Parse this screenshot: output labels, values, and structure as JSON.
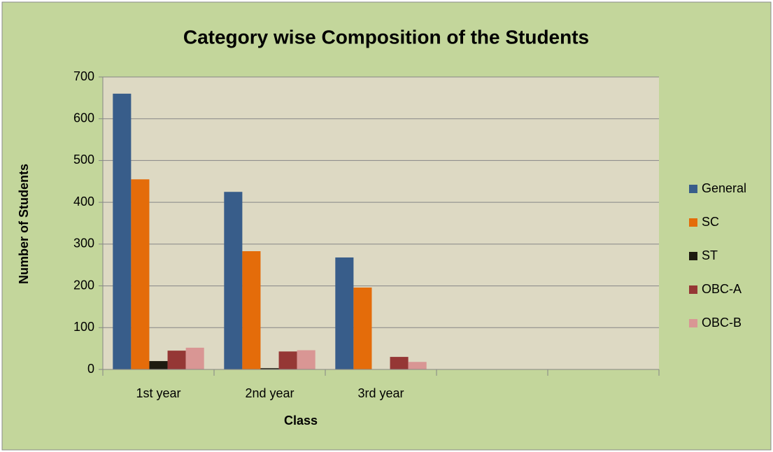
{
  "chart_data": {
    "type": "bar",
    "title": "Category wise Composition of the Students",
    "xlabel": "Class",
    "ylabel": "Number of Students",
    "categories": [
      "1st year",
      "2nd year",
      "3rd year",
      null,
      null
    ],
    "series": [
      {
        "name": "General",
        "color": "#385d8a",
        "values": [
          660,
          425,
          268,
          null,
          null
        ]
      },
      {
        "name": "SC",
        "color": "#e46c0a",
        "values": [
          455,
          283,
          196,
          null,
          null
        ]
      },
      {
        "name": "ST",
        "color": "#1d1b10",
        "values": [
          20,
          3,
          0,
          null,
          null
        ]
      },
      {
        "name": "OBC-A",
        "color": "#953735",
        "values": [
          45,
          43,
          30,
          null,
          null
        ]
      },
      {
        "name": "OBC-B",
        "color": "#d99694",
        "values": [
          52,
          46,
          18,
          null,
          null
        ]
      }
    ],
    "ylim": [
      0,
      700
    ],
    "yticks": [
      0,
      100,
      200,
      300,
      400,
      500,
      600,
      700
    ],
    "grid": true,
    "legend": "right"
  }
}
